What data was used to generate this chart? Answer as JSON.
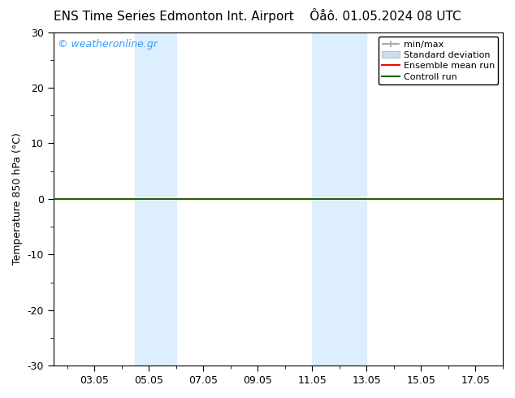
{
  "title_left": "ENS Time Series Edmonton Int. Airport",
  "title_right": "Ôåô. 01.05.2024 08 UTC",
  "ylabel": "Temperature 850 hPa (°C)",
  "ylim": [
    -30,
    30
  ],
  "yticks": [
    -30,
    -20,
    -10,
    0,
    10,
    20,
    30
  ],
  "xtick_labels": [
    "03.05",
    "05.05",
    "07.05",
    "09.05",
    "11.05",
    "13.05",
    "15.05",
    "17.05"
  ],
  "xtick_positions": [
    3,
    5,
    7,
    9,
    11,
    13,
    15,
    17
  ],
  "xlim": [
    1.5,
    18.0
  ],
  "highlight_bands": [
    {
      "x_start": 4.5,
      "x_end": 6.0
    },
    {
      "x_start": 11.0,
      "x_end": 13.0
    }
  ],
  "watermark": "© weatheronline.gr",
  "watermark_color": "#3399ff",
  "background_color": "#ffffff",
  "plot_bg_color": "#ffffff",
  "highlight_color": "#ddeeff",
  "legend_items": [
    {
      "label": "min/max",
      "color": "#aaaaaa",
      "lw": 1.5
    },
    {
      "label": "Standard deviation",
      "color": "#ccddf0",
      "lw": 8
    },
    {
      "label": "Ensemble mean run",
      "color": "#ff0000",
      "lw": 1.5
    },
    {
      "label": "Controll run",
      "color": "#006600",
      "lw": 1.5
    }
  ],
  "control_run_color": "#006600",
  "ensemble_mean_color": "#ff0000",
  "zero_line_y": 0,
  "ylabel_fontsize": 9,
  "tick_fontsize": 9,
  "title_fontsize": 11,
  "legend_fontsize": 8
}
